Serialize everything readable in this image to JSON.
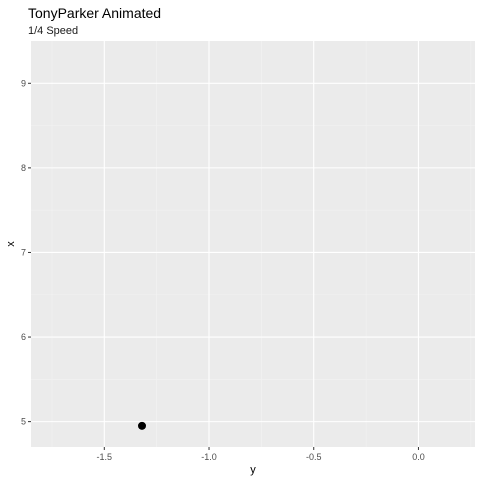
{
  "chart_data": {
    "type": "scatter",
    "title": "TonyParker Animated",
    "subtitle": "1/4 Speed",
    "xlabel": "y",
    "ylabel": "x",
    "xlim": [
      -1.85,
      0.27
    ],
    "ylim": [
      4.7,
      9.5
    ],
    "xticks": [
      -1.5,
      -1.0,
      -0.5,
      0.0
    ],
    "xtick_labels": [
      "-1.5",
      "-1.0",
      "-0.5",
      "0.0"
    ],
    "yticks": [
      5,
      6,
      7,
      8,
      9
    ],
    "ytick_labels": [
      "5",
      "6",
      "7",
      "8",
      "9"
    ],
    "grid": true,
    "points": [
      {
        "x": -1.32,
        "y": 4.95
      }
    ],
    "colors": {
      "panel_background": "#ebebeb",
      "grid_major": "#ffffff",
      "grid_minor": "#f2f2f2",
      "point": "#000000"
    }
  }
}
